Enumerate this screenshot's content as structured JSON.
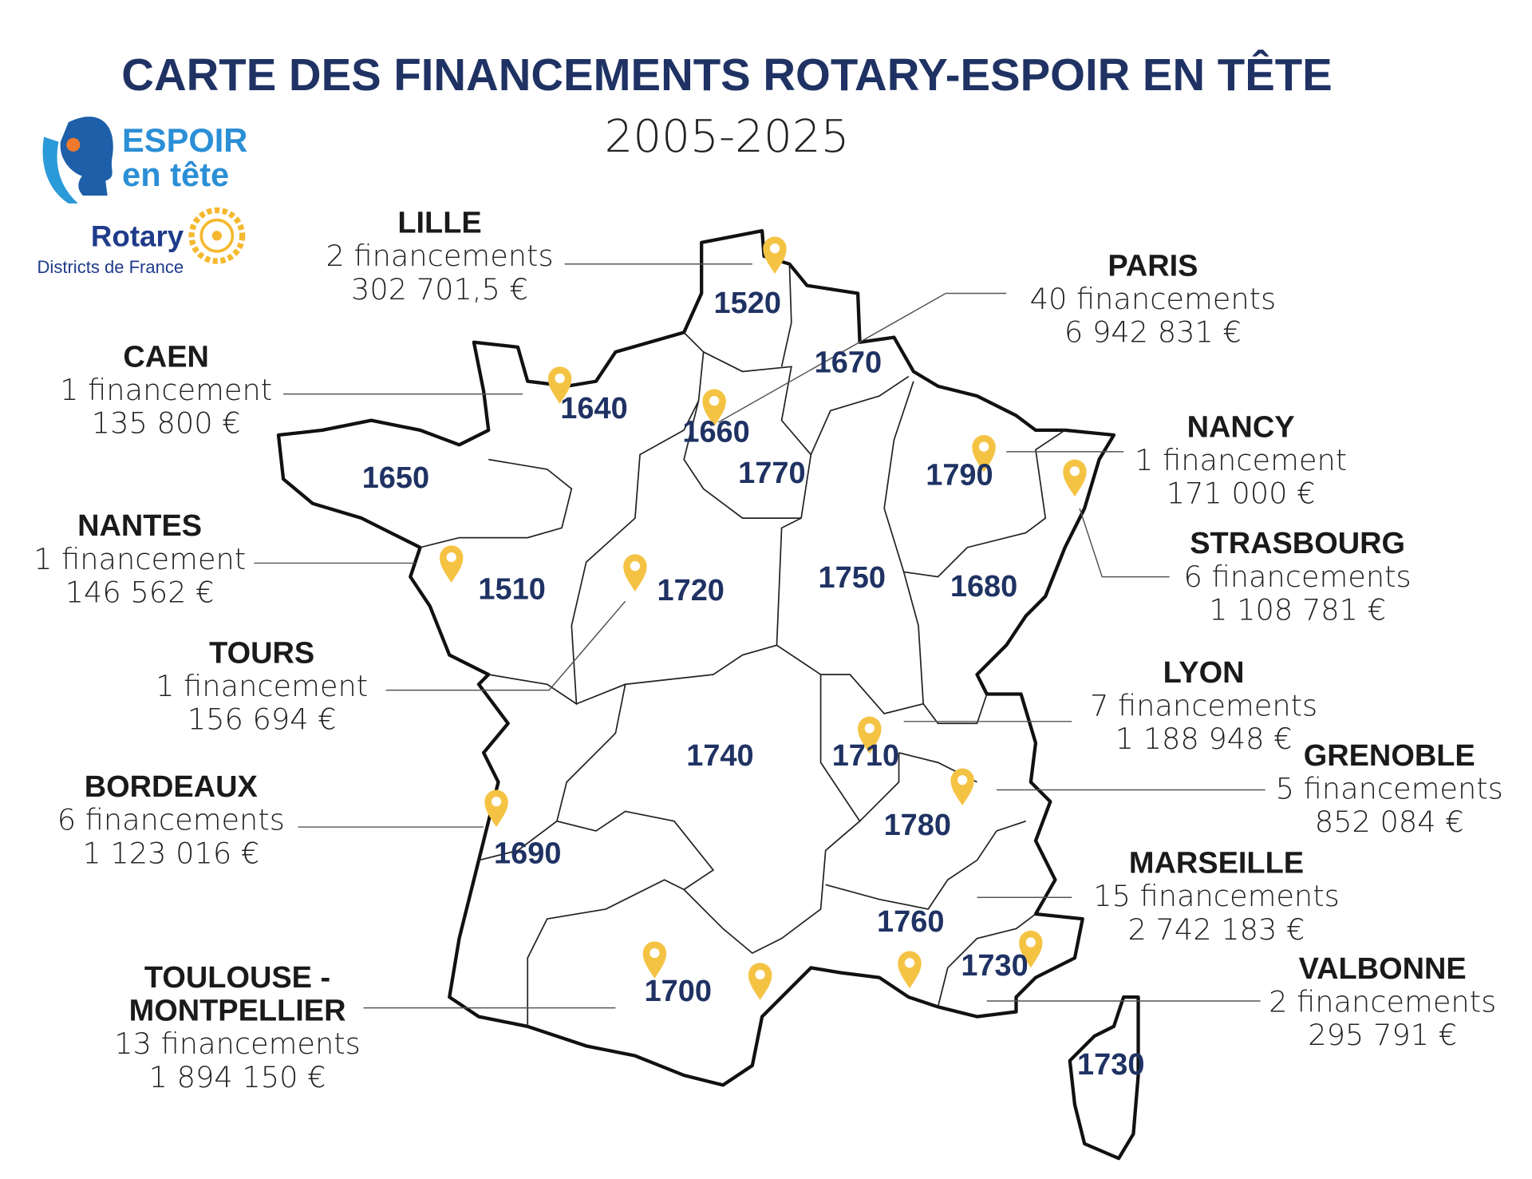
{
  "header": {
    "title": "CARTE DES FINANCEMENTS ROTARY-ESPOIR EN TÊTE",
    "subtitle": "2005-2025"
  },
  "logo": {
    "espoir": "ESPOIR",
    "en_tete": "en tête",
    "rotary": "Rotary",
    "districts": "Districts de France"
  },
  "districts": [
    "1520",
    "1670",
    "1640",
    "1660",
    "1650",
    "1770",
    "1790",
    "1510",
    "1720",
    "1750",
    "1680",
    "1740",
    "1710",
    "1780",
    "1690",
    "1760",
    "1730",
    "1700",
    "1730"
  ],
  "cities": [
    {
      "name": [
        "LILLE"
      ],
      "count": "2 financements",
      "amount": "302 701,5 €"
    },
    {
      "name": [
        "PARIS"
      ],
      "count": "40 financements",
      "amount": "6 942 831 €"
    },
    {
      "name": [
        "CAEN"
      ],
      "count": "1 financement",
      "amount": "135 800 €"
    },
    {
      "name": [
        "NANTES"
      ],
      "count": "1 financement",
      "amount": "146 562 €"
    },
    {
      "name": [
        "TOURS"
      ],
      "count": "1 financement",
      "amount": "156 694 €"
    },
    {
      "name": [
        "BORDEAUX"
      ],
      "count": "6 financements",
      "amount": "1 123 016 €"
    },
    {
      "name": [
        "TOULOUSE -",
        "MONTPELLIER"
      ],
      "count": "13 financements",
      "amount": "1 894 150 €"
    },
    {
      "name": [
        "NANCY"
      ],
      "count": "1 financement",
      "amount": "171 000 €"
    },
    {
      "name": [
        "STRASBOURG"
      ],
      "count": "6 financements",
      "amount": "1 108 781 €"
    },
    {
      "name": [
        "LYON"
      ],
      "count": "7 financements",
      "amount": "1 188 948 €"
    },
    {
      "name": [
        "GRENOBLE"
      ],
      "count": "5 financements",
      "amount": "852 084 €"
    },
    {
      "name": [
        "MARSEILLE"
      ],
      "count": "15 financements",
      "amount": "2 742 183 €"
    },
    {
      "name": [
        "VALBONNE"
      ],
      "count": "2 financements",
      "amount": "295 791 €"
    }
  ]
}
